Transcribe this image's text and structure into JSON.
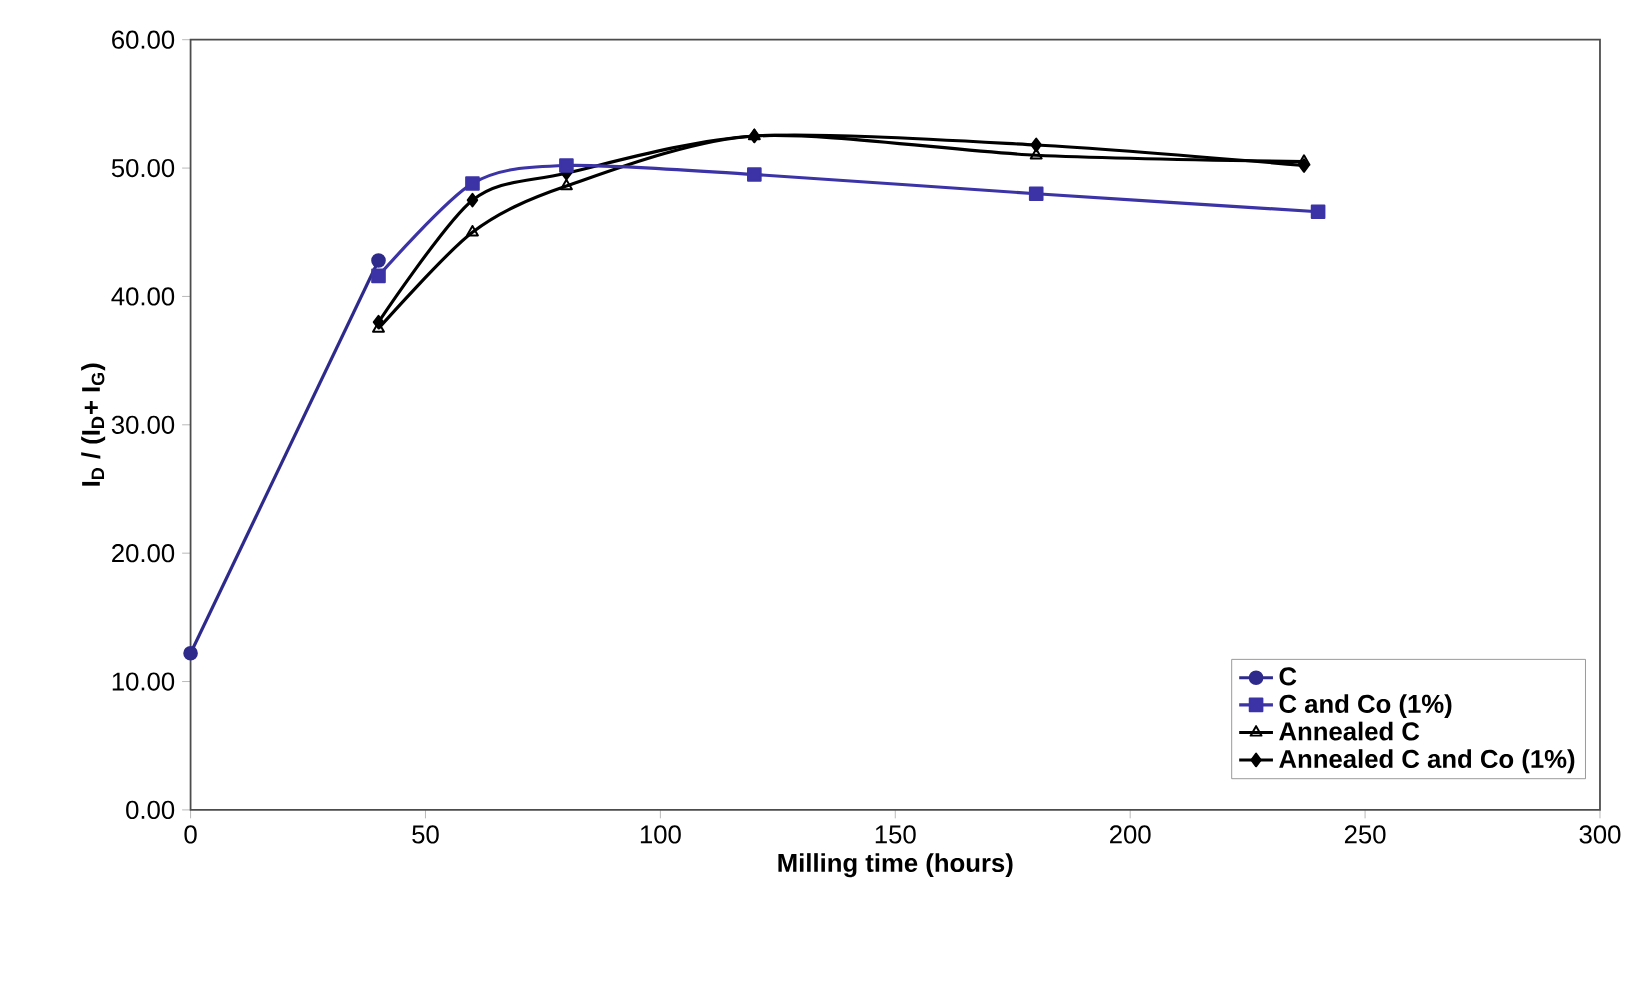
{
  "chart_data": {
    "type": "line",
    "xlabel": "Milling time (hours)",
    "ylabel": "I$_{D}$ / (I$_{D}$+ I$_{G}$)",
    "xlim": [
      0,
      300
    ],
    "xticks": [
      0,
      50,
      100,
      150,
      200,
      250,
      300
    ],
    "ylim": [
      0,
      60
    ],
    "yticks": [
      {
        "value": 0,
        "label": "0.00"
      },
      {
        "value": 10,
        "label": "10.00"
      },
      {
        "value": 20,
        "label": "20.00"
      },
      {
        "value": 30,
        "label": "30.00"
      },
      {
        "value": 40,
        "label": "40.00"
      },
      {
        "value": 50,
        "label": "50.00"
      },
      {
        "value": 60,
        "label": "60.00"
      }
    ],
    "legend": "bottom right",
    "grid": false,
    "series": [
      {
        "name": "C",
        "color": "#2e2a8c",
        "marker": "circle",
        "x": [
          0,
          40
        ],
        "values": [
          12.2,
          42.8
        ]
      },
      {
        "name": "C and Co (1%)",
        "color": "#3b33a6",
        "marker": "square",
        "x": [
          40,
          60,
          80,
          120,
          180,
          240
        ],
        "values": [
          41.6,
          48.8,
          50.2,
          49.5,
          48.0,
          46.6
        ]
      },
      {
        "name": "Annealed C",
        "color": "#000000",
        "marker": "triangle",
        "x": [
          40,
          60,
          80,
          120,
          180,
          237
        ],
        "values": [
          37.5,
          45.0,
          48.6,
          52.5,
          51.0,
          50.5
        ]
      },
      {
        "name": "Annealed C and Co (1%)",
        "color": "#000000",
        "marker": "diamond",
        "x": [
          40,
          60,
          80,
          120,
          180,
          237
        ],
        "values": [
          38.0,
          47.5,
          49.6,
          52.5,
          51.8,
          50.2
        ]
      }
    ]
  }
}
